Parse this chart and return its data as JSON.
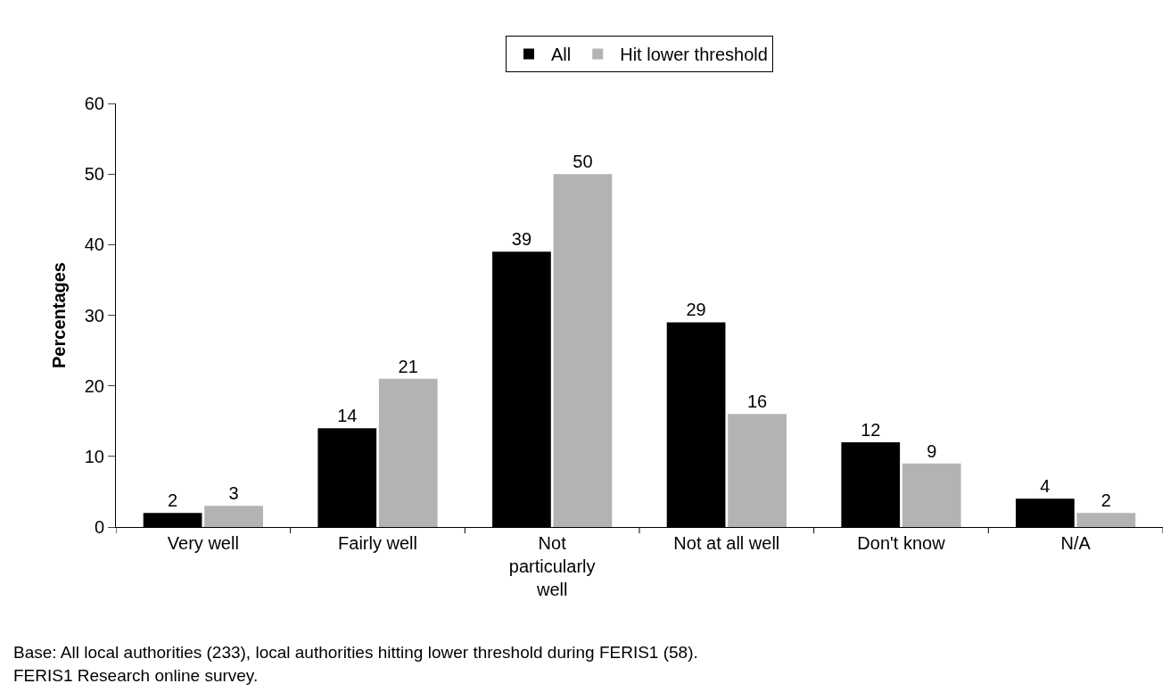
{
  "chart_data": {
    "type": "bar",
    "ylabel": "Percentages",
    "categories": [
      "Very well",
      "Fairly well",
      "Not particularly well",
      "Not at all well",
      "Don't know",
      "N/A"
    ],
    "series": [
      {
        "name": "All",
        "color": "#000000",
        "values": [
          2,
          14,
          39,
          29,
          12,
          4
        ]
      },
      {
        "name": "Hit lower threshold",
        "color": "#b3b3b3",
        "values": [
          3,
          21,
          50,
          16,
          9,
          2
        ]
      }
    ],
    "ylim": [
      0,
      60
    ],
    "yticks": [
      0,
      10,
      20,
      30,
      40,
      50,
      60
    ],
    "data_labels": true,
    "legend": "top",
    "annotations": [
      "Base: All local authorities (233), local authorities hitting lower threshold during FERIS1 (58).",
      "FERIS1 Research online survey."
    ]
  }
}
